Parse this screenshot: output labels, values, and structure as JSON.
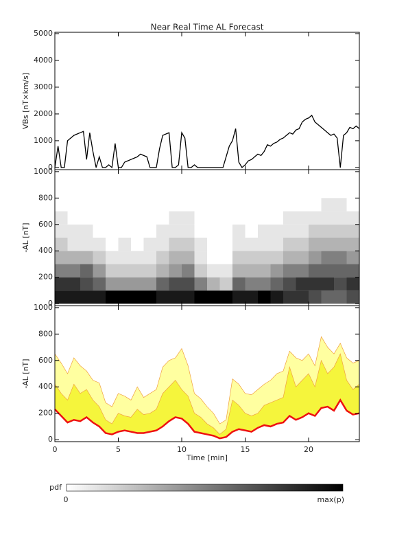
{
  "chart_data": [
    {
      "type": "line",
      "title": "Near Real Time AL Forecast",
      "ylabel": "VBs [nT×km/s]",
      "xlim": [
        0,
        24
      ],
      "xticks": [
        0,
        5,
        10,
        15,
        20
      ],
      "ylim": [
        -80,
        5050
      ],
      "yticks": [
        0,
        1000,
        2000,
        3000,
        4000,
        5000
      ],
      "x": [
        0,
        0.25,
        0.5,
        0.75,
        1,
        1.25,
        1.5,
        1.75,
        2,
        2.25,
        2.5,
        2.75,
        3,
        3.25,
        3.5,
        3.75,
        4,
        4.25,
        4.5,
        4.75,
        5,
        5.25,
        5.5,
        5.75,
        6,
        6.25,
        6.5,
        6.75,
        7,
        7.25,
        7.5,
        7.75,
        8,
        8.25,
        8.5,
        8.75,
        9,
        9.25,
        9.5,
        9.75,
        10,
        10.25,
        10.5,
        10.75,
        11,
        11.25,
        11.5,
        11.75,
        12,
        12.25,
        12.5,
        12.75,
        13,
        13.25,
        13.5,
        13.75,
        14,
        14.25,
        14.5,
        14.75,
        15,
        15.25,
        15.5,
        15.75,
        16,
        16.25,
        16.5,
        16.75,
        17,
        17.25,
        17.5,
        17.75,
        18,
        18.25,
        18.5,
        18.75,
        19,
        19.25,
        19.5,
        19.75,
        20,
        20.25,
        20.5,
        20.75,
        21,
        21.25,
        21.5,
        21.75,
        22,
        22.25,
        22.5,
        22.75,
        23,
        23.25,
        23.5,
        23.75,
        24
      ],
      "series": [
        {
          "color": "#000000",
          "values": [
            0,
            800,
            0,
            0,
            1000,
            1100,
            1200,
            1250,
            1300,
            1350,
            300,
            1300,
            600,
            0,
            400,
            0,
            0,
            100,
            0,
            900,
            0,
            0,
            200,
            250,
            300,
            350,
            400,
            500,
            450,
            400,
            0,
            0,
            0,
            700,
            1200,
            1250,
            1300,
            0,
            0,
            100,
            1300,
            1100,
            0,
            0,
            100,
            0,
            0,
            0,
            0,
            0,
            0,
            0,
            0,
            0,
            400,
            800,
            1000,
            1450,
            200,
            0,
            100,
            250,
            300,
            400,
            500,
            450,
            600,
            850,
            800,
            900,
            950,
            1050,
            1100,
            1200,
            1300,
            1250,
            1400,
            1450,
            1700,
            1800,
            1850,
            1950,
            1700,
            1600,
            1500,
            1400,
            1300,
            1200,
            1250,
            1100,
            0,
            1200,
            1300,
            1500,
            1450,
            1550,
            1450
          ]
        }
      ]
    },
    {
      "type": "heatmap",
      "ylabel": "-AL [nT]",
      "xlim": [
        0,
        24
      ],
      "xticks": [
        0,
        5,
        10,
        15,
        20
      ],
      "ylim": [
        -15,
        1015
      ],
      "yticks": [
        0,
        200,
        400,
        600,
        800,
        1000
      ],
      "xbins": [
        0,
        1,
        2,
        3,
        4,
        5,
        6,
        7,
        8,
        9,
        10,
        11,
        12,
        13,
        14,
        15,
        16,
        17,
        18,
        19,
        20,
        21,
        22,
        23,
        24
      ],
      "ybins": [
        0,
        100,
        200,
        300,
        400,
        500,
        600,
        700,
        800
      ],
      "cells": [
        [
          0.9,
          0.8,
          0.5,
          0.3,
          0.2,
          0.1,
          0.1,
          0
        ],
        [
          0.9,
          0.8,
          0.5,
          0.3,
          0.1,
          0.1,
          0,
          0
        ],
        [
          0.9,
          0.7,
          0.6,
          0.3,
          0.1,
          0.1,
          0,
          0
        ],
        [
          0.9,
          0.6,
          0.4,
          0.2,
          0.1,
          0,
          0,
          0
        ],
        [
          1,
          0.4,
          0.2,
          0.1,
          0,
          0,
          0,
          0
        ],
        [
          1,
          0.4,
          0.2,
          0.1,
          0.1,
          0,
          0,
          0
        ],
        [
          1,
          0.4,
          0.2,
          0.1,
          0,
          0,
          0,
          0
        ],
        [
          1,
          0.4,
          0.2,
          0.1,
          0.1,
          0,
          0,
          0
        ],
        [
          0.9,
          0.6,
          0.3,
          0.2,
          0.1,
          0.1,
          0,
          0
        ],
        [
          0.9,
          0.7,
          0.4,
          0.3,
          0.2,
          0.1,
          0.1,
          0
        ],
        [
          0.9,
          0.7,
          0.5,
          0.3,
          0.2,
          0.1,
          0.1,
          0
        ],
        [
          1,
          0.5,
          0.2,
          0.1,
          0.1,
          0,
          0,
          0
        ],
        [
          1,
          0.3,
          0.1,
          0,
          0,
          0,
          0,
          0
        ],
        [
          1,
          0.2,
          0.1,
          0,
          0,
          0,
          0,
          0
        ],
        [
          0.9,
          0.6,
          0.3,
          0.2,
          0.1,
          0.1,
          0,
          0
        ],
        [
          0.9,
          0.5,
          0.3,
          0.2,
          0.1,
          0,
          0,
          0
        ],
        [
          1,
          0.5,
          0.3,
          0.2,
          0.1,
          0.1,
          0,
          0
        ],
        [
          0.9,
          0.6,
          0.4,
          0.2,
          0.1,
          0.1,
          0,
          0
        ],
        [
          0.8,
          0.7,
          0.5,
          0.3,
          0.2,
          0.1,
          0.1,
          0
        ],
        [
          0.8,
          0.8,
          0.5,
          0.3,
          0.2,
          0.1,
          0.1,
          0
        ],
        [
          0.7,
          0.8,
          0.6,
          0.4,
          0.3,
          0.2,
          0.1,
          0
        ],
        [
          0.6,
          0.8,
          0.6,
          0.5,
          0.3,
          0.2,
          0.1,
          0.1
        ],
        [
          0.6,
          0.7,
          0.6,
          0.5,
          0.3,
          0.2,
          0.1,
          0.1
        ],
        [
          0.7,
          0.8,
          0.6,
          0.4,
          0.3,
          0.2,
          0.1,
          0
        ]
      ]
    },
    {
      "type": "band",
      "ylabel": "-AL [nT]",
      "xlabel": "Time [min]",
      "xlim": [
        0,
        24
      ],
      "xticks": [
        0,
        5,
        10,
        15,
        20
      ],
      "ylim": [
        -15,
        1015
      ],
      "yticks": [
        0,
        200,
        400,
        600,
        800,
        1000
      ],
      "x": [
        0,
        0.5,
        1,
        1.5,
        2,
        2.5,
        3,
        3.5,
        4,
        4.5,
        5,
        5.5,
        6,
        6.5,
        7,
        7.5,
        8,
        8.5,
        9,
        9.5,
        10,
        10.5,
        11,
        11.5,
        12,
        12.5,
        13,
        13.5,
        14,
        14.5,
        15,
        15.5,
        16,
        16.5,
        17,
        17.5,
        18,
        18.5,
        19,
        19.5,
        20,
        20.5,
        21,
        21.5,
        22,
        22.5,
        23,
        23.5,
        24
      ],
      "series": [
        {
          "color": "#ffffa0",
          "values": [
            650,
            580,
            500,
            620,
            560,
            520,
            450,
            430,
            280,
            250,
            350,
            330,
            300,
            400,
            320,
            350,
            380,
            550,
            600,
            620,
            690,
            560,
            350,
            310,
            250,
            200,
            120,
            150,
            460,
            420,
            350,
            340,
            380,
            420,
            450,
            500,
            520,
            670,
            620,
            600,
            650,
            560,
            780,
            700,
            650,
            730,
            620,
            580,
            600
          ]
        },
        {
          "color": "#f5f53c",
          "values": [
            420,
            350,
            300,
            420,
            350,
            380,
            300,
            250,
            150,
            120,
            200,
            180,
            170,
            230,
            190,
            200,
            230,
            350,
            400,
            450,
            380,
            330,
            200,
            170,
            120,
            90,
            40,
            80,
            300,
            260,
            200,
            180,
            200,
            260,
            280,
            300,
            320,
            550,
            400,
            450,
            500,
            400,
            600,
            500,
            550,
            650,
            450,
            380,
            420
          ]
        },
        {
          "color": "#ee1111",
          "values": [
            230,
            180,
            130,
            150,
            140,
            170,
            130,
            100,
            50,
            40,
            60,
            70,
            60,
            50,
            50,
            60,
            70,
            100,
            140,
            170,
            160,
            120,
            60,
            50,
            40,
            30,
            10,
            20,
            60,
            80,
            70,
            60,
            90,
            110,
            100,
            120,
            130,
            180,
            150,
            170,
            200,
            180,
            240,
            250,
            220,
            300,
            220,
            190,
            200
          ]
        }
      ]
    }
  ],
  "colorbar": {
    "label": "pdf",
    "min": 0,
    "max_label": "max(p)"
  }
}
